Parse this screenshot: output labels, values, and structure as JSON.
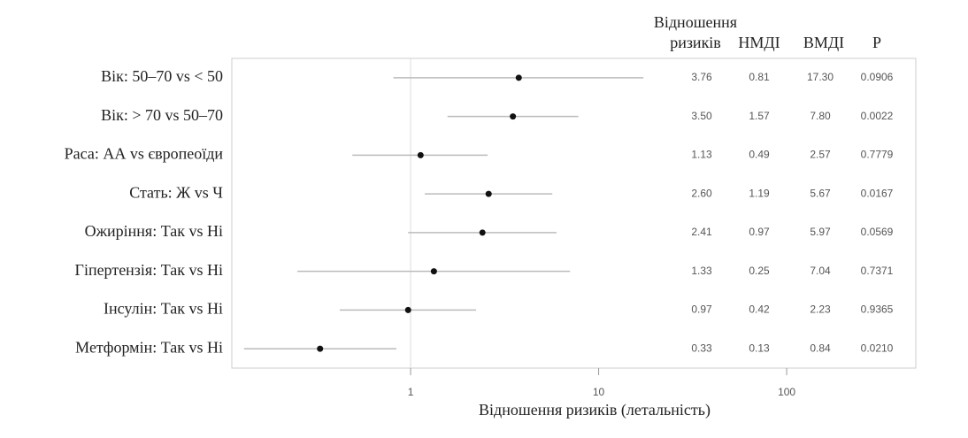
{
  "chart_data": {
    "type": "forest",
    "x_label": "Відношення ризиків (летальність)",
    "categories": [
      "Вік: 50–70 vs < 50",
      "Вік: > 70 vs 50–70",
      "Раса: АА vs європеоїди",
      "Стать: Ж vs Ч",
      "Ожиріння: Так vs Ні",
      "Гіпертензія: Так vs Ні",
      "Інсулін: Так vs Ні",
      "Метформін: Так vs Ні"
    ],
    "series": [
      {
        "name": "Відношення ризиків",
        "values": [
          3.76,
          3.5,
          1.13,
          2.6,
          2.41,
          1.33,
          0.97,
          0.33
        ],
        "value_labels": [
          "3.76",
          "3.50",
          "1.13",
          "2.60",
          "2.41",
          "1.33",
          "0.97",
          "0.33"
        ]
      },
      {
        "name": "НМДІ",
        "values": [
          0.81,
          1.57,
          0.49,
          1.19,
          0.97,
          0.25,
          0.42,
          0.13
        ],
        "value_labels": [
          "0.81",
          "1.57",
          "0.49",
          "1.19",
          "0.97",
          "0.25",
          "0.42",
          "0.13"
        ]
      },
      {
        "name": "ВМДІ",
        "values": [
          17.3,
          7.8,
          2.57,
          5.67,
          5.97,
          7.04,
          2.23,
          0.84
        ],
        "value_labels": [
          "17.30",
          "7.80",
          "2.57",
          "5.67",
          "5.97",
          "7.04",
          "2.23",
          "0.84"
        ]
      }
    ],
    "p_values": {
      "name": "P",
      "values": [
        0.0906,
        0.0022,
        0.7779,
        0.0167,
        0.0569,
        0.7371,
        0.9365,
        0.021
      ],
      "value_labels": [
        "0.0906",
        "0.0022",
        "0.7779",
        "0.0167",
        "0.0569",
        "0.7371",
        "0.9365",
        "0.0210"
      ]
    },
    "log_x": true,
    "xlim": [
      0.112,
      486
    ],
    "xticks": [
      1,
      10,
      100
    ],
    "reference_line": 1,
    "point_color": "#111111",
    "bar_color": "#bbbbbb"
  }
}
